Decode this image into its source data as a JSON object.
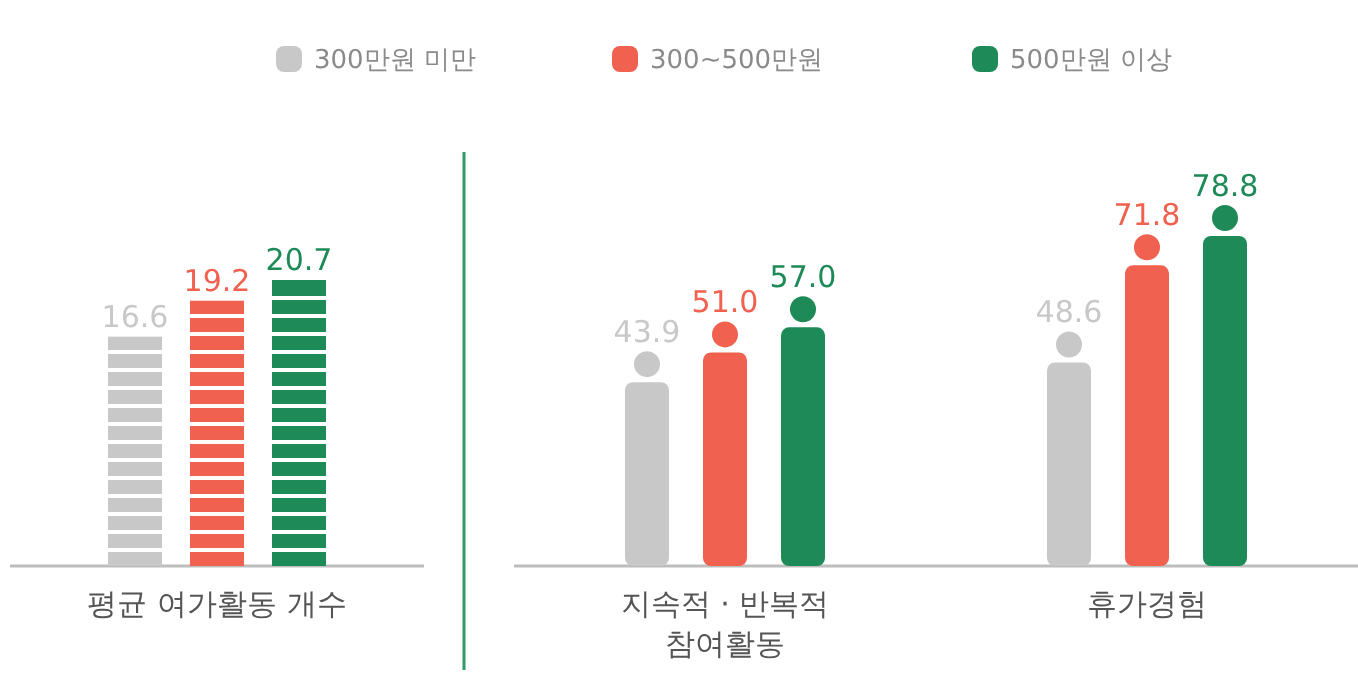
{
  "chart_data": [
    {
      "type": "bar",
      "categories": [
        "평균 여가활동 개수"
      ],
      "legend": "top",
      "data_labels": true,
      "series": [
        {
          "name": "300만원 미만",
          "color": "#c8c8c8",
          "values": [
            16.6
          ],
          "value_labels": [
            "16.6"
          ]
        },
        {
          "name": "300~500만원",
          "color": "#f0614f",
          "values": [
            19.2
          ],
          "value_labels": [
            "19.2"
          ]
        },
        {
          "name": "500만원 이상",
          "color": "#1e8a57",
          "values": [
            20.7
          ],
          "value_labels": [
            "20.7"
          ]
        }
      ]
    },
    {
      "type": "bar",
      "categories": [
        "지속적 · 반복적 참여활동",
        "휴가경험"
      ],
      "marker": "circle",
      "data_labels": true,
      "series": [
        {
          "color": "#c8c8c8",
          "values": [
            43.9,
            48.6
          ],
          "value_labels": [
            "43.9",
            "48.6"
          ]
        },
        {
          "color": "#f0614f",
          "values": [
            51.0,
            71.8
          ],
          "value_labels": [
            "51.0",
            "71.8"
          ]
        },
        {
          "color": "#1e8a57",
          "values": [
            57.0,
            78.8
          ],
          "value_labels": [
            "57.0",
            "78.8"
          ]
        }
      ]
    }
  ]
}
